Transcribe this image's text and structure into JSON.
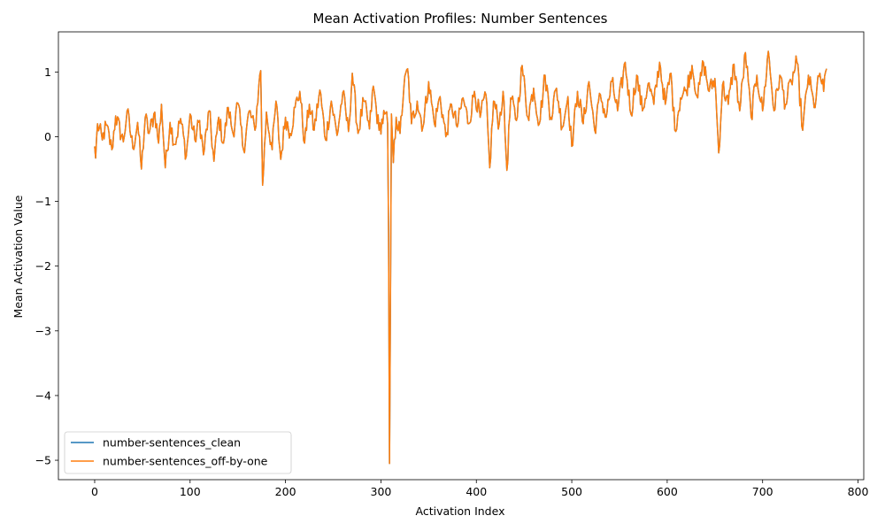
{
  "chart_data": {
    "type": "line",
    "title": "Mean Activation Profiles: Number Sentences",
    "xlabel": "Activation Index",
    "ylabel": "Mean Activation Value",
    "xlim": [
      -38,
      806
    ],
    "ylim": [
      -5.3,
      1.62
    ],
    "xticks": [
      0,
      100,
      200,
      300,
      400,
      500,
      600,
      700,
      800
    ],
    "yticks": [
      -5,
      -4,
      -3,
      -2,
      -1,
      0,
      1
    ],
    "legend_position": "lower-left",
    "grid": false,
    "n_points": 768,
    "anchors": [
      [
        0,
        -0.15
      ],
      [
        1,
        -0.33
      ],
      [
        3,
        0.2
      ],
      [
        8,
        -0.05
      ],
      [
        12,
        0.18
      ],
      [
        18,
        -0.2
      ],
      [
        22,
        0.32
      ],
      [
        30,
        -0.08
      ],
      [
        34,
        0.4
      ],
      [
        40,
        -0.18
      ],
      [
        45,
        0.22
      ],
      [
        49,
        -0.5
      ],
      [
        53,
        0.3
      ],
      [
        57,
        0.05
      ],
      [
        63,
        0.38
      ],
      [
        67,
        -0.1
      ],
      [
        70,
        0.5
      ],
      [
        74,
        -0.48
      ],
      [
        79,
        0.22
      ],
      [
        84,
        -0.12
      ],
      [
        90,
        0.28
      ],
      [
        96,
        -0.3
      ],
      [
        100,
        0.35
      ],
      [
        105,
        -0.05
      ],
      [
        110,
        0.25
      ],
      [
        114,
        -0.28
      ],
      [
        120,
        0.4
      ],
      [
        125,
        -0.38
      ],
      [
        130,
        0.3
      ],
      [
        135,
        -0.1
      ],
      [
        140,
        0.45
      ],
      [
        145,
        0.05
      ],
      [
        150,
        0.52
      ],
      [
        156,
        -0.2
      ],
      [
        162,
        0.4
      ],
      [
        168,
        0.1
      ],
      [
        172,
        0.78
      ],
      [
        174,
        1.02
      ],
      [
        176,
        -0.75
      ],
      [
        180,
        0.38
      ],
      [
        186,
        -0.2
      ],
      [
        190,
        0.55
      ],
      [
        195,
        -0.35
      ],
      [
        200,
        0.3
      ],
      [
        205,
        0.05
      ],
      [
        210,
        0.45
      ],
      [
        215,
        0.7
      ],
      [
        220,
        -0.1
      ],
      [
        225,
        0.5
      ],
      [
        230,
        0.1
      ],
      [
        236,
        0.72
      ],
      [
        242,
        -0.05
      ],
      [
        248,
        0.55
      ],
      [
        254,
        0.02
      ],
      [
        260,
        0.68
      ],
      [
        266,
        0.08
      ],
      [
        270,
        0.98
      ],
      [
        276,
        0.05
      ],
      [
        282,
        0.55
      ],
      [
        288,
        0.12
      ],
      [
        292,
        0.78
      ],
      [
        298,
        0.1
      ],
      [
        304,
        0.35
      ],
      [
        307,
        0.2
      ],
      [
        308,
        -1.5
      ],
      [
        309,
        -5.05
      ],
      [
        310,
        -2.5
      ],
      [
        311,
        0.35
      ],
      [
        313,
        -0.4
      ],
      [
        316,
        0.3
      ],
      [
        320,
        0.05
      ],
      [
        324,
        0.75
      ],
      [
        328,
        1.05
      ],
      [
        332,
        0.2
      ],
      [
        338,
        0.55
      ],
      [
        344,
        0.15
      ],
      [
        350,
        0.85
      ],
      [
        356,
        0.2
      ],
      [
        362,
        0.62
      ],
      [
        368,
        0.0
      ],
      [
        374,
        0.5
      ],
      [
        380,
        0.15
      ],
      [
        386,
        0.6
      ],
      [
        392,
        0.2
      ],
      [
        398,
        0.7
      ],
      [
        404,
        0.3
      ],
      [
        410,
        0.65
      ],
      [
        414,
        -0.48
      ],
      [
        418,
        0.55
      ],
      [
        424,
        0.2
      ],
      [
        428,
        0.7
      ],
      [
        432,
        -0.52
      ],
      [
        436,
        0.6
      ],
      [
        442,
        0.25
      ],
      [
        448,
        1.1
      ],
      [
        454,
        0.3
      ],
      [
        460,
        0.75
      ],
      [
        466,
        0.2
      ],
      [
        472,
        0.95
      ],
      [
        478,
        0.3
      ],
      [
        484,
        0.75
      ],
      [
        490,
        0.15
      ],
      [
        496,
        0.62
      ],
      [
        500,
        -0.15
      ],
      [
        506,
        0.7
      ],
      [
        512,
        0.2
      ],
      [
        518,
        0.85
      ],
      [
        524,
        0.1
      ],
      [
        530,
        0.65
      ],
      [
        536,
        0.3
      ],
      [
        542,
        0.85
      ],
      [
        548,
        0.4
      ],
      [
        556,
        1.15
      ],
      [
        562,
        0.35
      ],
      [
        568,
        0.95
      ],
      [
        574,
        0.4
      ],
      [
        580,
        0.82
      ],
      [
        586,
        0.5
      ],
      [
        592,
        1.15
      ],
      [
        598,
        0.5
      ],
      [
        604,
        0.98
      ],
      [
        608,
        0.1
      ],
      [
        614,
        0.6
      ],
      [
        620,
        0.72
      ],
      [
        626,
        1.1
      ],
      [
        632,
        0.6
      ],
      [
        638,
        1.15
      ],
      [
        644,
        0.7
      ],
      [
        650,
        0.9
      ],
      [
        654,
        -0.25
      ],
      [
        658,
        0.8
      ],
      [
        664,
        0.5
      ],
      [
        670,
        1.12
      ],
      [
        676,
        0.4
      ],
      [
        682,
        1.3
      ],
      [
        688,
        0.3
      ],
      [
        694,
        0.95
      ],
      [
        700,
        0.4
      ],
      [
        706,
        1.32
      ],
      [
        712,
        0.4
      ],
      [
        718,
        0.95
      ],
      [
        724,
        0.5
      ],
      [
        730,
        0.85
      ],
      [
        736,
        1.15
      ],
      [
        742,
        0.1
      ],
      [
        748,
        0.95
      ],
      [
        754,
        0.45
      ],
      [
        760,
        0.98
      ],
      [
        764,
        0.7
      ],
      [
        767,
        1.05
      ]
    ],
    "series": [
      {
        "name": "number-sentences_clean",
        "color": "#1f77b4"
      },
      {
        "name": "number-sentences_off-by-one",
        "color": "#ff7f0e"
      }
    ]
  }
}
